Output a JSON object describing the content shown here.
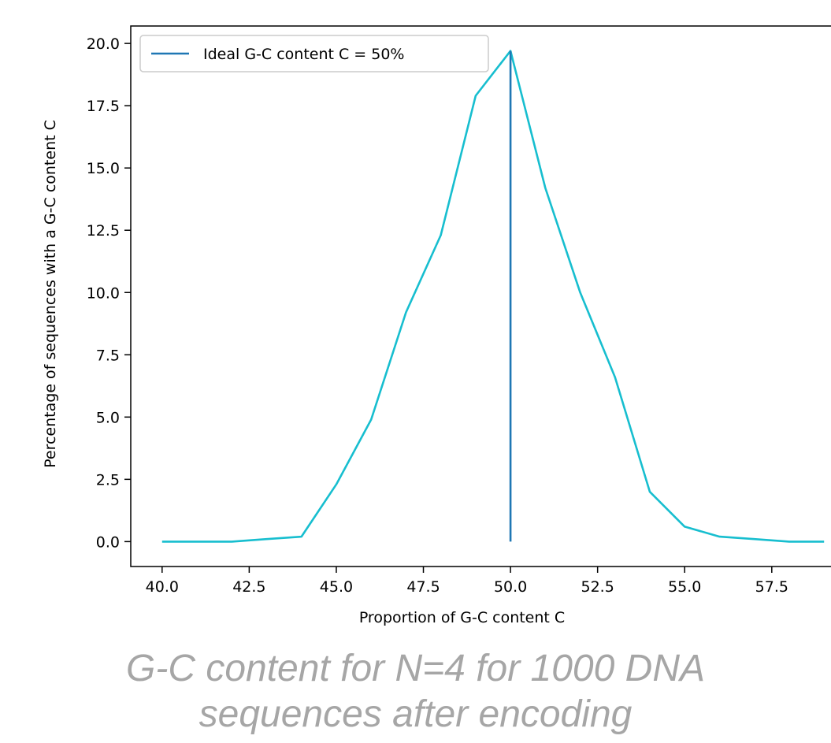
{
  "chart_data": {
    "type": "line",
    "xlabel": "Proportion of G-C content C",
    "ylabel": "Percentage of sequences with a G-C content C",
    "xlim": [
      39.1,
      59.2
    ],
    "ylim": [
      -1.0,
      20.7
    ],
    "xticks": [
      40.0,
      42.5,
      45.0,
      47.5,
      50.0,
      52.5,
      55.0,
      57.5
    ],
    "xtick_labels": [
      "40.0",
      "42.5",
      "45.0",
      "47.5",
      "50.0",
      "52.5",
      "55.0",
      "57.5"
    ],
    "yticks": [
      0.0,
      2.5,
      5.0,
      7.5,
      10.0,
      12.5,
      15.0,
      17.5,
      20.0
    ],
    "ytick_labels": [
      "0.0",
      "2.5",
      "5.0",
      "7.5",
      "10.0",
      "12.5",
      "15.0",
      "17.5",
      "20.0"
    ],
    "grid": false,
    "legend": {
      "placement": "top-left",
      "entries": [
        "Ideal G-C content C = 50%"
      ]
    },
    "series": [
      {
        "color": "#17becf",
        "x": [
          40,
          41,
          42,
          43,
          44,
          45,
          46,
          47,
          48,
          49,
          50,
          51,
          52,
          53,
          54,
          55,
          56,
          57,
          58,
          59
        ],
        "y": [
          0.0,
          0.0,
          0.0,
          0.1,
          0.2,
          2.3,
          4.9,
          9.2,
          12.3,
          17.9,
          19.7,
          14.2,
          10.0,
          6.6,
          2.0,
          0.6,
          0.2,
          0.1,
          0.0,
          0.0
        ]
      },
      {
        "name": "Ideal G-C content C = 50%",
        "color": "#1f77b4",
        "x": [
          50,
          50
        ],
        "y": [
          0.0,
          19.7
        ]
      }
    ]
  },
  "caption": {
    "line1": "G-C content for N=4 for 1000 DNA",
    "line2": "sequences after encoding"
  }
}
